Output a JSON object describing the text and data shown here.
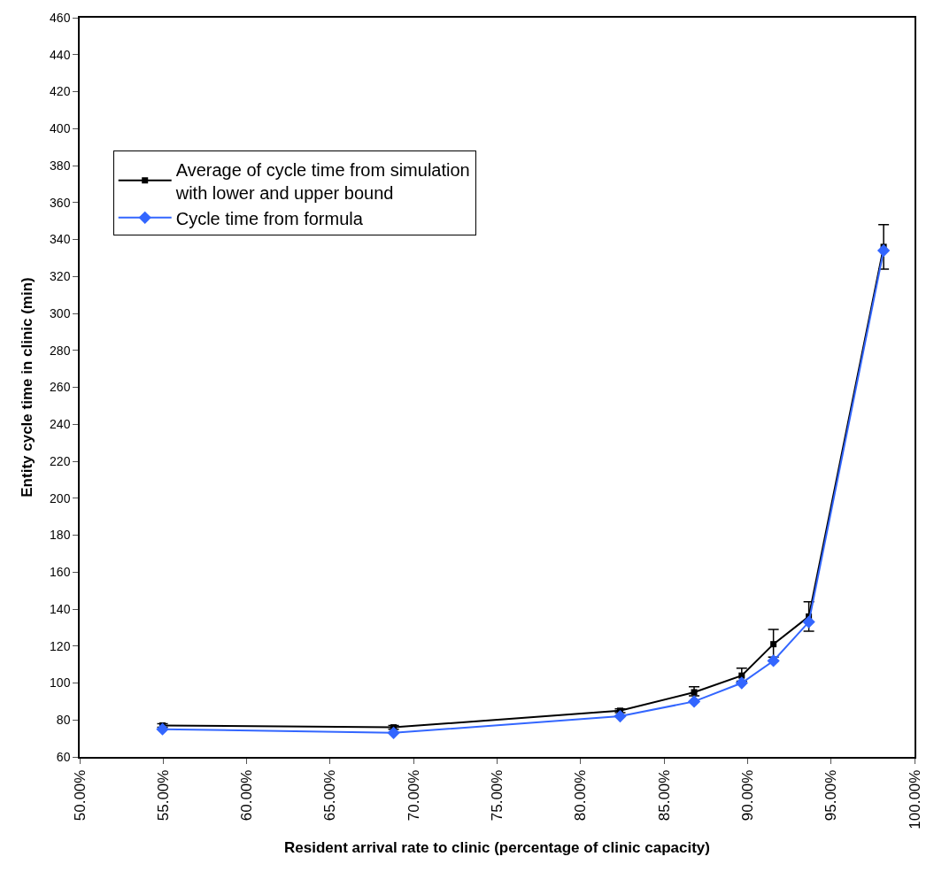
{
  "chart_data": {
    "type": "line",
    "xlabel": "Resident arrival rate to clinic (percentage of clinic capacity)",
    "ylabel": "Entity cycle time in clinic (min)",
    "xlim": [
      50,
      100
    ],
    "xticks": [
      {
        "value": 50,
        "label": "50.00%"
      },
      {
        "value": 55,
        "label": "55.00%"
      },
      {
        "value": 60,
        "label": "60.00%"
      },
      {
        "value": 65,
        "label": "65.00%"
      },
      {
        "value": 70,
        "label": "70.00%"
      },
      {
        "value": 75,
        "label": "75.00%"
      },
      {
        "value": 80,
        "label": "80.00%"
      },
      {
        "value": 85,
        "label": "85.00%"
      },
      {
        "value": 90,
        "label": "90.00%"
      },
      {
        "value": 95,
        "label": "95.00%"
      },
      {
        "value": 100,
        "label": "100.00%"
      }
    ],
    "ylim": [
      60,
      460
    ],
    "yticks": [
      60,
      80,
      100,
      120,
      140,
      160,
      180,
      200,
      220,
      240,
      260,
      280,
      300,
      320,
      340,
      360,
      380,
      400,
      420,
      440,
      460
    ],
    "x": [
      54.96,
      68.8,
      82.37,
      86.8,
      89.65,
      91.55,
      93.67,
      98.15
    ],
    "series": [
      {
        "name": "Average of cycle time from simulation\nwith lower and upper bound",
        "color": "#000000",
        "marker": "square",
        "values": [
          77,
          76,
          85,
          95,
          104,
          121,
          136,
          336
        ],
        "errors": [
          [
            76,
            78
          ],
          [
            75,
            77
          ],
          [
            84,
            86
          ],
          [
            93,
            98
          ],
          [
            101,
            108
          ],
          [
            114,
            129
          ],
          [
            128,
            144
          ],
          [
            324,
            348
          ]
        ]
      },
      {
        "name": "Cycle time from formula",
        "color": "#3366ff",
        "marker": "diamond",
        "values": [
          75,
          73,
          82,
          90,
          100,
          112,
          133,
          334
        ]
      }
    ],
    "legend": "top left",
    "line_style": "solid"
  }
}
